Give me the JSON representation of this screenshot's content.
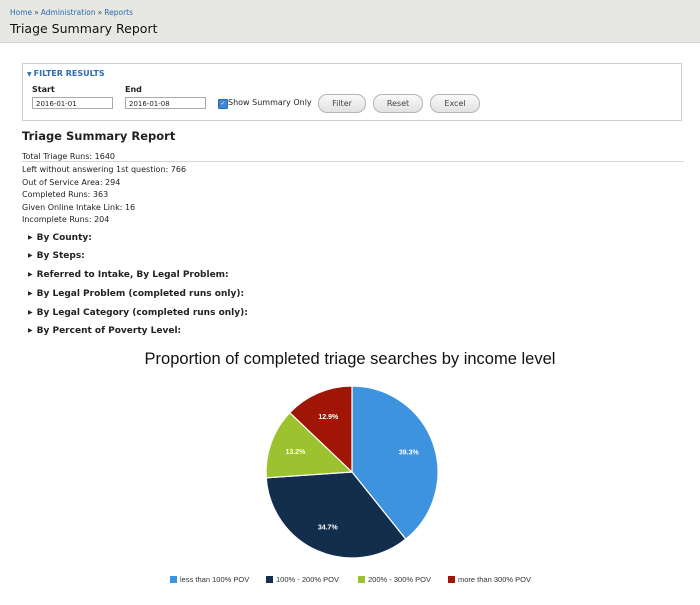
{
  "breadcrumb": {
    "items": [
      "Home",
      "Administration",
      "Reports"
    ],
    "separator": "»"
  },
  "page_title": "Triage Summary Report",
  "filter": {
    "legend": "FILTER RESULTS",
    "start_label": "Start",
    "start_value": "2016-01-01",
    "end_label": "End",
    "end_value": "2016-01-08",
    "summary_only_label": "Show Summary Only",
    "summary_only_checked": true,
    "buttons": {
      "filter": "Filter",
      "reset": "Reset",
      "excel": "Excel"
    }
  },
  "report": {
    "title": "Triage Summary Report",
    "stats": [
      "Total Triage Runs: 1640",
      "Left without answering 1st question: 766",
      "Out of Service Area: 294",
      "Completed Runs: 363",
      "Given Online Intake Link: 16",
      "Incomplete Runs: 204"
    ],
    "sections": [
      "By County:",
      "By Steps:",
      "Referred to Intake, By Legal Problem:",
      "By Legal Problem (completed runs only):",
      "By Legal Category (completed runs only):",
      "By Percent of Poverty Level:"
    ]
  },
  "chart_data": {
    "type": "pie",
    "title": "Proportion of completed triage searches by income level",
    "categories": [
      "less than 100% POV",
      "100% - 200% POV",
      "200% - 300% POV",
      "more than 300% POV"
    ],
    "values": [
      39.3,
      34.7,
      13.2,
      12.9
    ],
    "labels": [
      "39.3%",
      "34.7%",
      "13.2%",
      "12.9%"
    ],
    "colors": [
      "#3d93dd",
      "#132d4d",
      "#9dc22f",
      "#a01505"
    ],
    "legend_position": "bottom"
  }
}
